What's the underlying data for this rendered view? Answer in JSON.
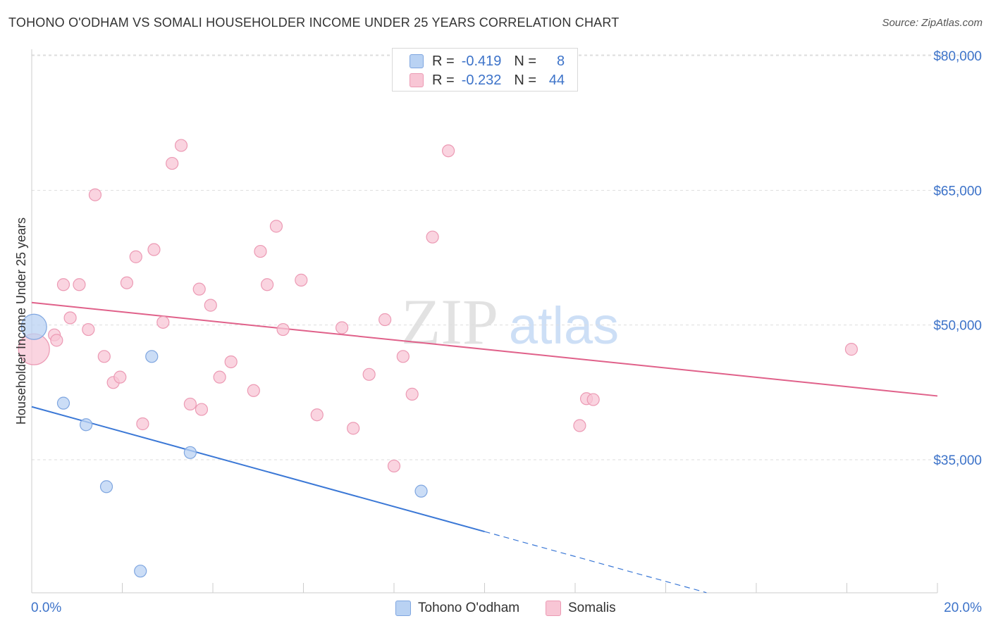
{
  "title": "TOHONO O'ODHAM VS SOMALI HOUSEHOLDER INCOME UNDER 25 YEARS CORRELATION CHART",
  "source": "Source: ZipAtlas.com",
  "watermark": {
    "zip": "ZIP",
    "atlas": "atlas"
  },
  "colors": {
    "blue": "#3b78d6",
    "blue_fill": "#b9d2f3",
    "blue_stroke": "#7fa6e0",
    "pink": "#e0618a",
    "pink_fill": "#f8c6d5",
    "pink_stroke": "#ec9ab4",
    "axis_text": "#3d73c9",
    "grid": "#dddddd"
  },
  "legend": {
    "series1": {
      "r_label": "R =",
      "r_value": "-0.419",
      "n_label": "N =",
      "n_value": "8"
    },
    "series2": {
      "r_label": "R =",
      "r_value": "-0.232",
      "n_label": "N =",
      "n_value": "44"
    }
  },
  "bottom_legend": {
    "series1": "Tohono O'odham",
    "series2": "Somalis"
  },
  "chart_data": {
    "type": "scatter",
    "title": "TOHONO O'ODHAM VS SOMALI HOUSEHOLDER INCOME UNDER 25 YEARS CORRELATION CHART",
    "xlabel": "",
    "ylabel": "Householder Income Under 25 years",
    "xlim": [
      0,
      20
    ],
    "ylim": [
      22500,
      83000
    ],
    "x_tick_labels": [
      "0.0%",
      "20.0%"
    ],
    "y_ticks": [
      35000,
      50000,
      65000,
      80000
    ],
    "y_tick_labels": [
      "$35,000",
      "$50,000",
      "$65,000",
      "$80,000"
    ],
    "legend_position": "top-center",
    "series": [
      {
        "name": "Tohono O'odham",
        "r": -0.419,
        "n": 8,
        "points": [
          [
            0.05,
            49800
          ],
          [
            0.7,
            41300
          ],
          [
            1.2,
            38900
          ],
          [
            1.65,
            32000
          ],
          [
            2.65,
            46500
          ],
          [
            3.5,
            35800
          ],
          [
            8.6,
            31500
          ],
          [
            2.4,
            22600
          ]
        ],
        "trend": {
          "x": [
            0,
            10
          ],
          "y": [
            40900,
            27000
          ]
        },
        "trend_dashed": {
          "x": [
            10,
            14.9
          ],
          "y": [
            27000,
            20200
          ]
        }
      },
      {
        "name": "Somalis",
        "r": -0.232,
        "n": 44,
        "points": [
          [
            0.05,
            47300
          ],
          [
            0.5,
            48900
          ],
          [
            0.55,
            48300
          ],
          [
            0.7,
            54500
          ],
          [
            0.85,
            50800
          ],
          [
            1.05,
            54500
          ],
          [
            1.25,
            49500
          ],
          [
            1.4,
            64500
          ],
          [
            1.6,
            46500
          ],
          [
            1.8,
            43600
          ],
          [
            1.95,
            44200
          ],
          [
            2.1,
            54700
          ],
          [
            2.3,
            57600
          ],
          [
            2.45,
            39000
          ],
          [
            2.7,
            58400
          ],
          [
            2.9,
            50300
          ],
          [
            3.1,
            68000
          ],
          [
            3.3,
            70000
          ],
          [
            3.5,
            41200
          ],
          [
            3.7,
            54000
          ],
          [
            3.75,
            40600
          ],
          [
            3.95,
            52200
          ],
          [
            4.15,
            44200
          ],
          [
            4.4,
            45900
          ],
          [
            4.9,
            42700
          ],
          [
            5.05,
            58200
          ],
          [
            5.2,
            54500
          ],
          [
            5.4,
            61000
          ],
          [
            5.55,
            49500
          ],
          [
            5.95,
            55000
          ],
          [
            6.3,
            40000
          ],
          [
            6.85,
            49700
          ],
          [
            7.1,
            38500
          ],
          [
            7.45,
            44500
          ],
          [
            7.8,
            50600
          ],
          [
            8.0,
            34300
          ],
          [
            8.2,
            46500
          ],
          [
            8.4,
            42300
          ],
          [
            8.85,
            59800
          ],
          [
            9.2,
            69400
          ],
          [
            12.1,
            38800
          ],
          [
            12.25,
            41800
          ],
          [
            12.4,
            41700
          ],
          [
            18.1,
            47300
          ]
        ],
        "trend": {
          "x": [
            0,
            20
          ],
          "y": [
            52500,
            42100
          ]
        }
      }
    ]
  }
}
